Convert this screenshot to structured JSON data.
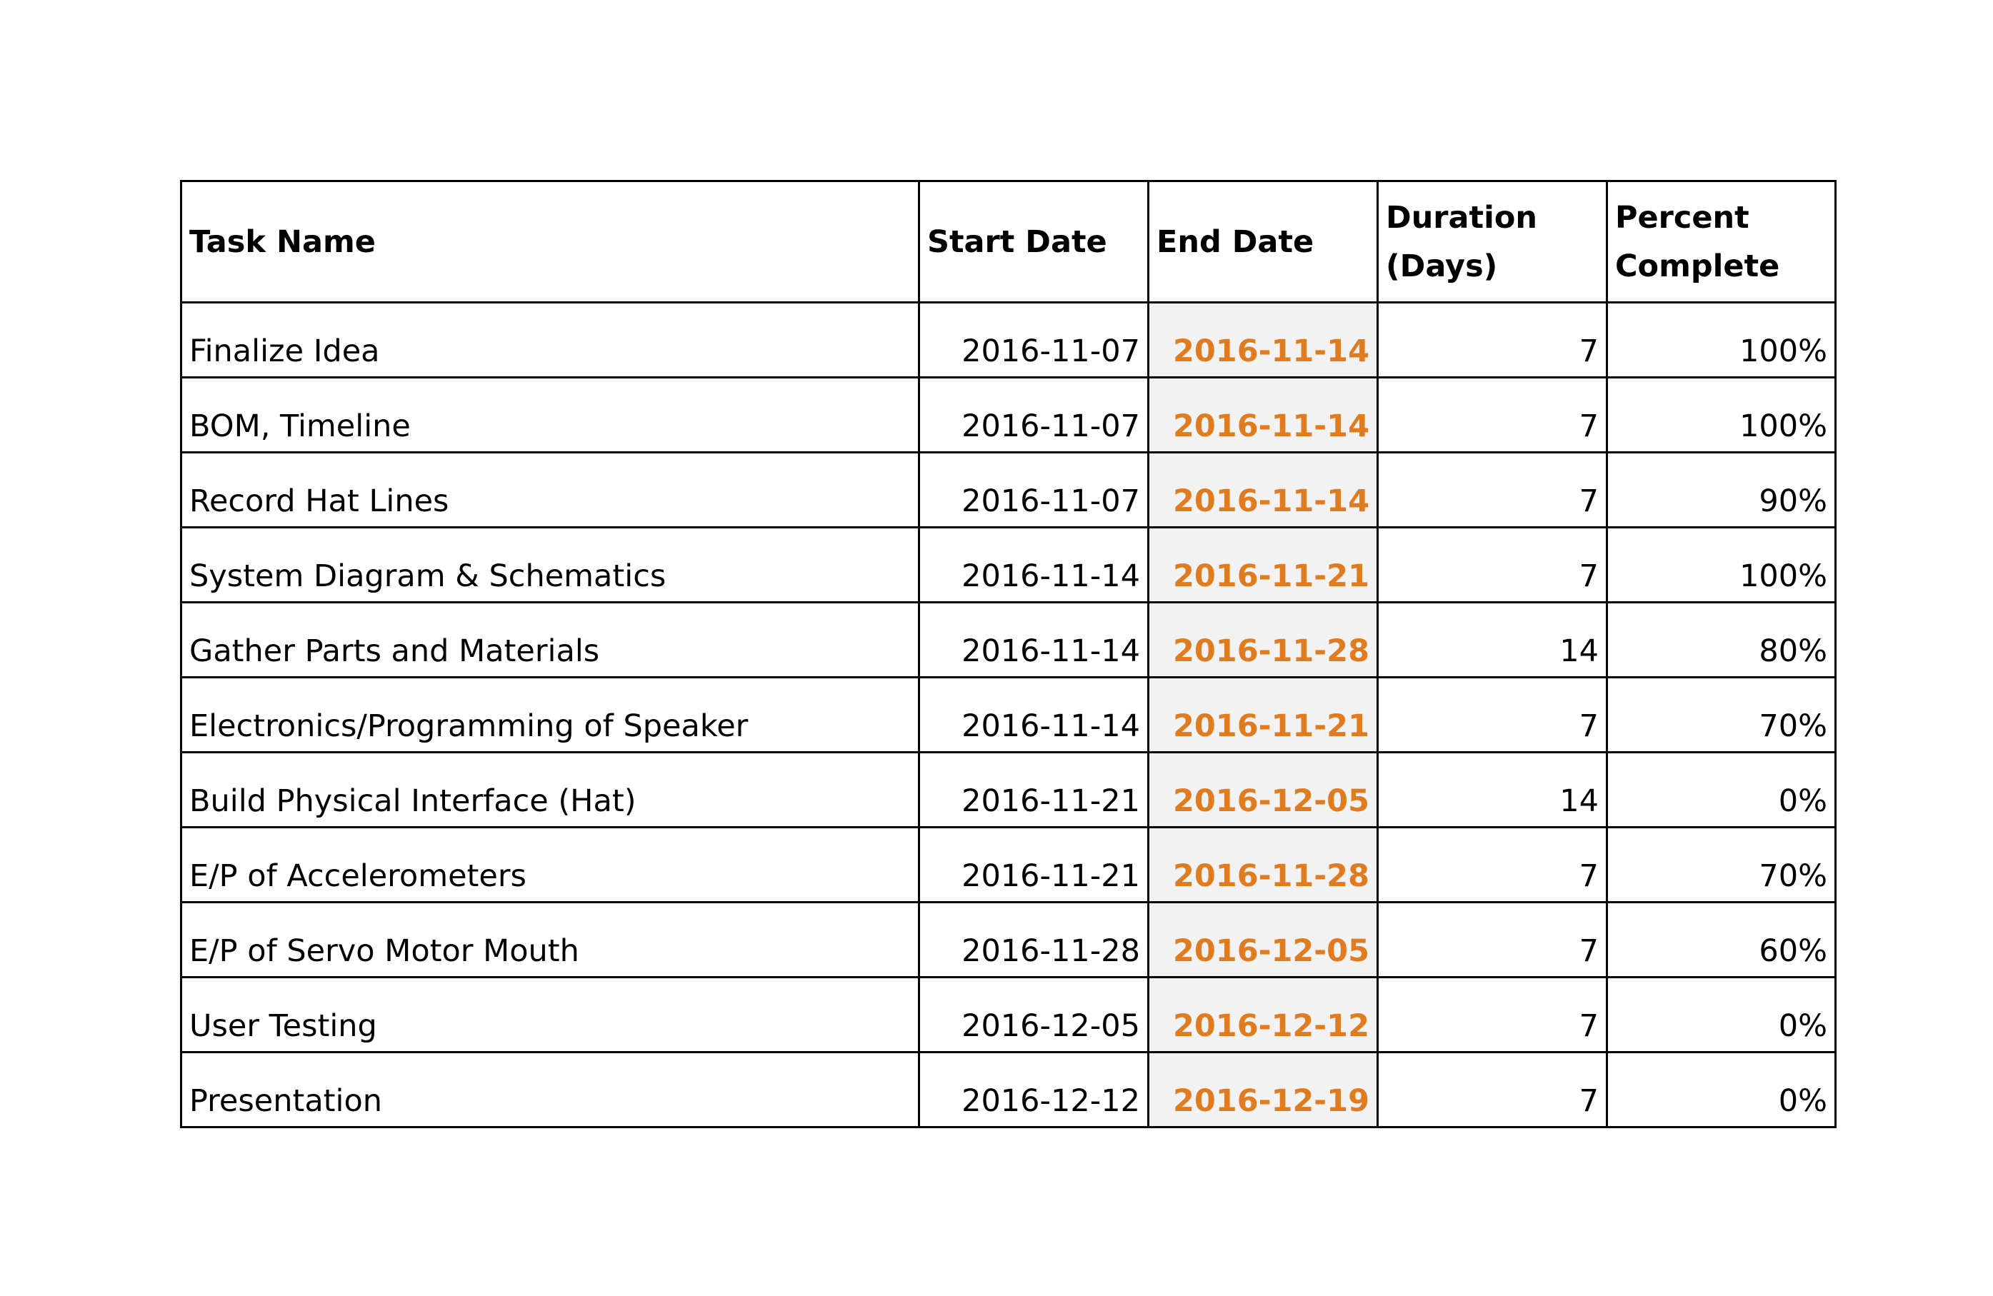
{
  "colors": {
    "end_date_text": "#e07b20",
    "end_date_background": "#f2f2f2",
    "border": "#000000"
  },
  "table": {
    "headers": {
      "task_name": "Task Name",
      "start_date": "Start Date",
      "end_date": "End Date",
      "duration": "Duration (Days)",
      "percent_complete": "Percent Complete"
    },
    "rows": [
      {
        "task": "Finalize Idea",
        "start": "2016-11-07",
        "end": "2016-11-14",
        "duration": "7",
        "percent": "100%"
      },
      {
        "task": "BOM, Timeline",
        "start": "2016-11-07",
        "end": "2016-11-14",
        "duration": "7",
        "percent": "100%"
      },
      {
        "task": "Record Hat Lines",
        "start": "2016-11-07",
        "end": "2016-11-14",
        "duration": "7",
        "percent": "90%"
      },
      {
        "task": "System Diagram & Schematics",
        "start": "2016-11-14",
        "end": "2016-11-21",
        "duration": "7",
        "percent": "100%"
      },
      {
        "task": "Gather Parts and Materials",
        "start": "2016-11-14",
        "end": "2016-11-28",
        "duration": "14",
        "percent": "80%"
      },
      {
        "task": "Electronics/Programming of Speaker",
        "start": "2016-11-14",
        "end": "2016-11-21",
        "duration": "7",
        "percent": "70%"
      },
      {
        "task": "Build Physical Interface (Hat)",
        "start": "2016-11-21",
        "end": "2016-12-05",
        "duration": "14",
        "percent": "0%"
      },
      {
        "task": "E/P of Accelerometers",
        "start": "2016-11-21",
        "end": "2016-11-28",
        "duration": "7",
        "percent": "70%"
      },
      {
        "task": "E/P of Servo Motor Mouth",
        "start": "2016-11-28",
        "end": "2016-12-05",
        "duration": "7",
        "percent": "60%"
      },
      {
        "task": "User Testing",
        "start": "2016-12-05",
        "end": "2016-12-12",
        "duration": "7",
        "percent": "0%"
      },
      {
        "task": "Presentation",
        "start": "2016-12-12",
        "end": "2016-12-19",
        "duration": "7",
        "percent": "0%"
      }
    ]
  }
}
